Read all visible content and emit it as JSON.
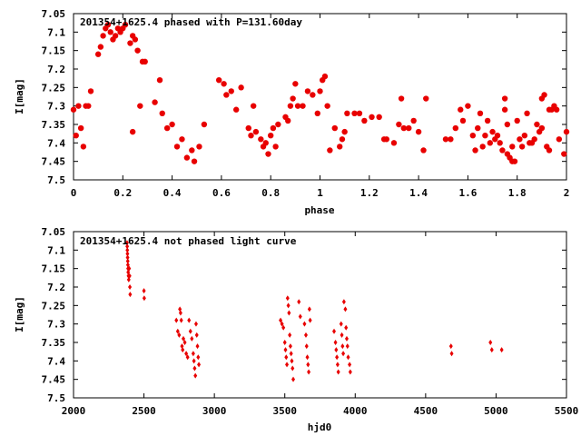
{
  "chart_data": [
    {
      "type": "scatter",
      "title": "201354+1625.4 phased with P=131.60day",
      "xlabel": "phase",
      "ylabel": "I[mag]",
      "xlim": [
        0,
        2
      ],
      "ylim": [
        7.05,
        7.5
      ],
      "y_inverted": true,
      "grid": false,
      "marker": "filled-circle",
      "color": "#e80000",
      "x_ticks": [
        "0",
        "0.2",
        "0.4",
        "0.6",
        "0.8",
        "1",
        "1.2",
        "1.4",
        "1.6",
        "1.8",
        "2"
      ],
      "x_tick_values": [
        0,
        0.2,
        0.4,
        0.6,
        0.8,
        1.0,
        1.2,
        1.4,
        1.6,
        1.8,
        2.0
      ],
      "y_ticks": [
        "7.05",
        "7.1",
        "7.15",
        "7.2",
        "7.25",
        "7.3",
        "7.35",
        "7.4",
        "7.45",
        "7.5"
      ],
      "y_tick_values": [
        7.05,
        7.1,
        7.15,
        7.2,
        7.25,
        7.3,
        7.35,
        7.4,
        7.45,
        7.5
      ],
      "points": [
        [
          0.0,
          7.31
        ],
        [
          0.01,
          7.38
        ],
        [
          0.02,
          7.3
        ],
        [
          0.03,
          7.36
        ],
        [
          0.04,
          7.41
        ],
        [
          0.05,
          7.3
        ],
        [
          0.06,
          7.3
        ],
        [
          0.07,
          7.26
        ],
        [
          0.1,
          7.16
        ],
        [
          0.11,
          7.14
        ],
        [
          0.12,
          7.11
        ],
        [
          0.13,
          7.09
        ],
        [
          0.14,
          7.08
        ],
        [
          0.15,
          7.1
        ],
        [
          0.16,
          7.12
        ],
        [
          0.17,
          7.11
        ],
        [
          0.18,
          7.09
        ],
        [
          0.19,
          7.1
        ],
        [
          0.2,
          7.09
        ],
        [
          0.21,
          7.08
        ],
        [
          0.23,
          7.13
        ],
        [
          0.24,
          7.37
        ],
        [
          0.24,
          7.11
        ],
        [
          0.25,
          7.12
        ],
        [
          0.26,
          7.15
        ],
        [
          0.27,
          7.3
        ],
        [
          0.28,
          7.18
        ],
        [
          0.29,
          7.18
        ],
        [
          0.33,
          7.29
        ],
        [
          0.35,
          7.23
        ],
        [
          0.36,
          7.32
        ],
        [
          0.38,
          7.36
        ],
        [
          0.4,
          7.35
        ],
        [
          0.42,
          7.41
        ],
        [
          0.44,
          7.39
        ],
        [
          0.46,
          7.44
        ],
        [
          0.48,
          7.42
        ],
        [
          0.49,
          7.45
        ],
        [
          0.51,
          7.41
        ],
        [
          0.53,
          7.35
        ],
        [
          0.59,
          7.23
        ],
        [
          0.61,
          7.24
        ],
        [
          0.62,
          7.27
        ],
        [
          0.64,
          7.26
        ],
        [
          0.66,
          7.31
        ],
        [
          0.68,
          7.25
        ],
        [
          0.71,
          7.36
        ],
        [
          0.72,
          7.38
        ],
        [
          0.73,
          7.3
        ],
        [
          0.74,
          7.37
        ],
        [
          0.76,
          7.39
        ],
        [
          0.77,
          7.41
        ],
        [
          0.78,
          7.4
        ],
        [
          0.79,
          7.43
        ],
        [
          0.8,
          7.38
        ],
        [
          0.81,
          7.36
        ],
        [
          0.82,
          7.41
        ],
        [
          0.83,
          7.35
        ],
        [
          0.86,
          7.33
        ],
        [
          0.87,
          7.34
        ],
        [
          0.88,
          7.3
        ],
        [
          0.89,
          7.28
        ],
        [
          0.9,
          7.24
        ],
        [
          0.91,
          7.3
        ],
        [
          0.93,
          7.3
        ],
        [
          0.95,
          7.26
        ],
        [
          0.97,
          7.27
        ],
        [
          0.99,
          7.32
        ],
        [
          1.0,
          7.26
        ],
        [
          1.01,
          7.23
        ],
        [
          1.02,
          7.22
        ],
        [
          1.03,
          7.3
        ],
        [
          1.04,
          7.42
        ],
        [
          1.06,
          7.36
        ],
        [
          1.08,
          7.41
        ],
        [
          1.09,
          7.39
        ],
        [
          1.1,
          7.37
        ],
        [
          1.11,
          7.32
        ],
        [
          1.14,
          7.32
        ],
        [
          1.16,
          7.32
        ],
        [
          1.18,
          7.34
        ],
        [
          1.21,
          7.33
        ],
        [
          1.24,
          7.33
        ],
        [
          1.26,
          7.39
        ],
        [
          1.27,
          7.39
        ],
        [
          1.3,
          7.4
        ],
        [
          1.32,
          7.35
        ],
        [
          1.33,
          7.28
        ],
        [
          1.34,
          7.36
        ],
        [
          1.36,
          7.36
        ],
        [
          1.38,
          7.34
        ],
        [
          1.4,
          7.37
        ],
        [
          1.42,
          7.42
        ],
        [
          1.43,
          7.28
        ],
        [
          1.51,
          7.39
        ],
        [
          1.53,
          7.39
        ],
        [
          1.55,
          7.36
        ],
        [
          1.57,
          7.31
        ],
        [
          1.58,
          7.34
        ],
        [
          1.6,
          7.3
        ],
        [
          1.62,
          7.38
        ],
        [
          1.63,
          7.42
        ],
        [
          1.64,
          7.36
        ],
        [
          1.65,
          7.32
        ],
        [
          1.66,
          7.41
        ],
        [
          1.67,
          7.38
        ],
        [
          1.68,
          7.34
        ],
        [
          1.69,
          7.4
        ],
        [
          1.7,
          7.37
        ],
        [
          1.71,
          7.39
        ],
        [
          1.72,
          7.38
        ],
        [
          1.73,
          7.4
        ],
        [
          1.74,
          7.42
        ],
        [
          1.75,
          7.28
        ],
        [
          1.75,
          7.31
        ],
        [
          1.76,
          7.35
        ],
        [
          1.76,
          7.43
        ],
        [
          1.77,
          7.44
        ],
        [
          1.78,
          7.41
        ],
        [
          1.78,
          7.45
        ],
        [
          1.79,
          7.45
        ],
        [
          1.8,
          7.34
        ],
        [
          1.81,
          7.39
        ],
        [
          1.82,
          7.41
        ],
        [
          1.83,
          7.38
        ],
        [
          1.84,
          7.32
        ],
        [
          1.85,
          7.4
        ],
        [
          1.86,
          7.4
        ],
        [
          1.87,
          7.39
        ],
        [
          1.88,
          7.35
        ],
        [
          1.89,
          7.37
        ],
        [
          1.9,
          7.36
        ],
        [
          1.9,
          7.28
        ],
        [
          1.91,
          7.27
        ],
        [
          1.92,
          7.41
        ],
        [
          1.93,
          7.31
        ],
        [
          1.93,
          7.42
        ],
        [
          1.94,
          7.31
        ],
        [
          1.95,
          7.3
        ],
        [
          1.96,
          7.31
        ],
        [
          1.97,
          7.39
        ],
        [
          1.99,
          7.43
        ],
        [
          2.0,
          7.37
        ]
      ]
    },
    {
      "type": "scatter",
      "title": "201354+1625.4 not phased light curve",
      "xlabel": "hjd0",
      "ylabel": "I[mag]",
      "xlim": [
        2000,
        5500
      ],
      "ylim": [
        7.05,
        7.5
      ],
      "y_inverted": true,
      "grid": false,
      "marker": "small-diamond",
      "color": "#e80000",
      "x_ticks": [
        "2000",
        "2500",
        "3000",
        "3500",
        "4000",
        "4500",
        "5000",
        "5500"
      ],
      "x_tick_values": [
        2000,
        2500,
        3000,
        3500,
        4000,
        4500,
        5000,
        5500
      ],
      "y_ticks": [
        "7.05",
        "7.1",
        "7.15",
        "7.2",
        "7.25",
        "7.3",
        "7.35",
        "7.4",
        "7.45",
        "7.5"
      ],
      "y_tick_values": [
        7.05,
        7.1,
        7.15,
        7.2,
        7.25,
        7.3,
        7.35,
        7.4,
        7.45,
        7.5
      ],
      "points": [
        [
          2380,
          7.08
        ],
        [
          2381,
          7.09
        ],
        [
          2382,
          7.1
        ],
        [
          2383,
          7.11
        ],
        [
          2384,
          7.12
        ],
        [
          2385,
          7.13
        ],
        [
          2386,
          7.14
        ],
        [
          2387,
          7.15
        ],
        [
          2388,
          7.16
        ],
        [
          2390,
          7.17
        ],
        [
          2392,
          7.18
        ],
        [
          2395,
          7.15
        ],
        [
          2398,
          7.17
        ],
        [
          2400,
          7.2
        ],
        [
          2402,
          7.22
        ],
        [
          2500,
          7.21
        ],
        [
          2502,
          7.23
        ],
        [
          2730,
          7.29
        ],
        [
          2740,
          7.32
        ],
        [
          2750,
          7.33
        ],
        [
          2755,
          7.26
        ],
        [
          2760,
          7.27
        ],
        [
          2765,
          7.29
        ],
        [
          2770,
          7.36
        ],
        [
          2775,
          7.37
        ],
        [
          2780,
          7.34
        ],
        [
          2790,
          7.35
        ],
        [
          2800,
          7.38
        ],
        [
          2810,
          7.39
        ],
        [
          2820,
          7.29
        ],
        [
          2830,
          7.32
        ],
        [
          2840,
          7.34
        ],
        [
          2850,
          7.38
        ],
        [
          2855,
          7.4
        ],
        [
          2860,
          7.42
        ],
        [
          2865,
          7.44
        ],
        [
          2870,
          7.3
        ],
        [
          2875,
          7.33
        ],
        [
          2880,
          7.36
        ],
        [
          2885,
          7.39
        ],
        [
          2890,
          7.41
        ],
        [
          3470,
          7.29
        ],
        [
          3480,
          7.3
        ],
        [
          3490,
          7.31
        ],
        [
          3500,
          7.35
        ],
        [
          3505,
          7.37
        ],
        [
          3510,
          7.39
        ],
        [
          3515,
          7.41
        ],
        [
          3520,
          7.23
        ],
        [
          3525,
          7.25
        ],
        [
          3530,
          7.27
        ],
        [
          3535,
          7.33
        ],
        [
          3540,
          7.36
        ],
        [
          3545,
          7.38
        ],
        [
          3550,
          7.4
        ],
        [
          3555,
          7.42
        ],
        [
          3560,
          7.45
        ],
        [
          3600,
          7.24
        ],
        [
          3610,
          7.28
        ],
        [
          3640,
          7.3
        ],
        [
          3650,
          7.33
        ],
        [
          3655,
          7.36
        ],
        [
          3660,
          7.39
        ],
        [
          3665,
          7.41
        ],
        [
          3670,
          7.43
        ],
        [
          3675,
          7.26
        ],
        [
          3680,
          7.29
        ],
        [
          3850,
          7.32
        ],
        [
          3860,
          7.35
        ],
        [
          3865,
          7.37
        ],
        [
          3870,
          7.39
        ],
        [
          3875,
          7.41
        ],
        [
          3880,
          7.43
        ],
        [
          3900,
          7.3
        ],
        [
          3905,
          7.33
        ],
        [
          3910,
          7.36
        ],
        [
          3915,
          7.38
        ],
        [
          3920,
          7.24
        ],
        [
          3930,
          7.26
        ],
        [
          3935,
          7.31
        ],
        [
          3940,
          7.34
        ],
        [
          3945,
          7.36
        ],
        [
          3950,
          7.39
        ],
        [
          3960,
          7.41
        ],
        [
          3965,
          7.43
        ],
        [
          4680,
          7.36
        ],
        [
          4685,
          7.38
        ],
        [
          4960,
          7.35
        ],
        [
          4970,
          7.37
        ],
        [
          5040,
          7.37
        ]
      ]
    }
  ]
}
